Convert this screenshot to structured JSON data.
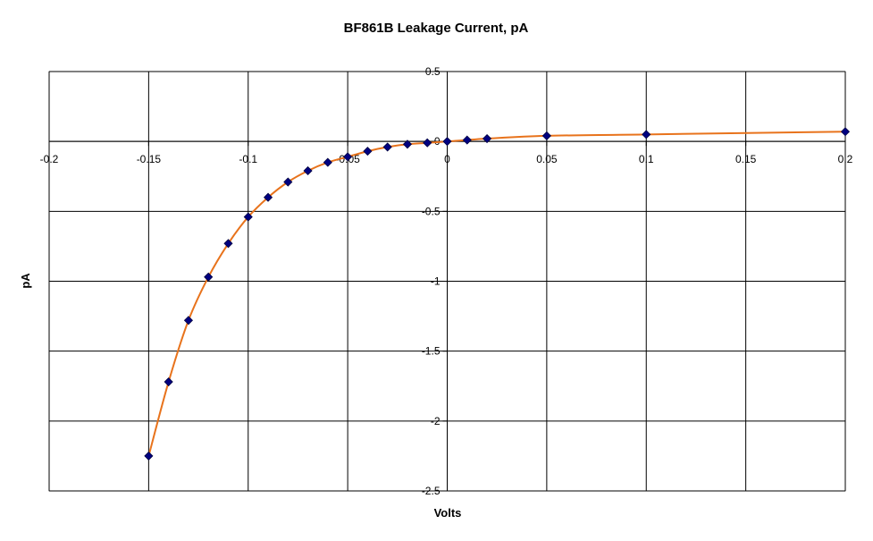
{
  "chart_data": {
    "type": "scatter",
    "title": "BF861B Leakage Current, pA",
    "xlabel": "Volts",
    "ylabel": "pA",
    "xlim": [
      -0.2,
      0.2
    ],
    "ylim": [
      -2.5,
      0.5
    ],
    "x_ticks": [
      "-0.2",
      "-0.15",
      "-0.1",
      "-0.05",
      "0",
      "0.05",
      "0.1",
      "0.15",
      "0.2"
    ],
    "y_ticks": [
      "0.5",
      "0",
      "-0.5",
      "-1",
      "-1.5",
      "-2",
      "-2.5"
    ],
    "grid": true,
    "legend": "none",
    "colors": {
      "line": "#E8731C",
      "marker": "#000080",
      "grid": "#000000"
    },
    "series": [
      {
        "x": [
          -0.15,
          -0.14,
          -0.13,
          -0.12,
          -0.11,
          -0.1,
          -0.09,
          -0.08,
          -0.07,
          -0.06,
          -0.05,
          -0.04,
          -0.03,
          -0.02,
          -0.01,
          0,
          0.01,
          0.02,
          0.05,
          0.1,
          0.2
        ],
        "y": [
          -2.25,
          -1.72,
          -1.28,
          -0.97,
          -0.73,
          -0.54,
          -0.4,
          -0.29,
          -0.21,
          -0.15,
          -0.11,
          -0.07,
          -0.04,
          -0.02,
          -0.01,
          0,
          0.01,
          0.02,
          0.04,
          0.05,
          0.07
        ]
      }
    ]
  }
}
